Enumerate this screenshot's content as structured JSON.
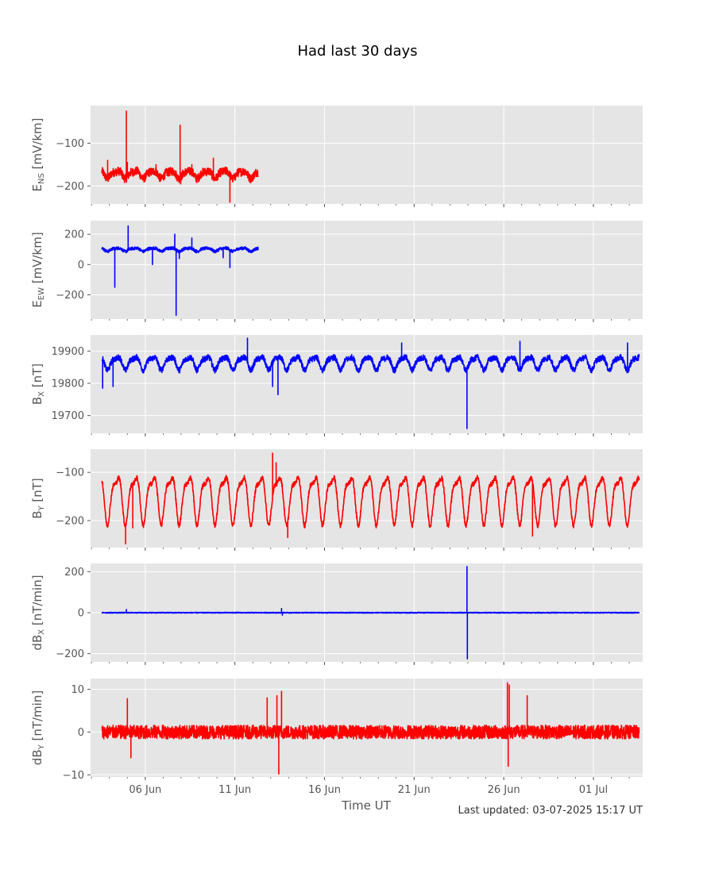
{
  "title": "Had last 30 days",
  "xlabel": "Time UT",
  "footer": "Last updated: 03-07-2025 15:17 UT",
  "chart_data": [
    {
      "type": "line",
      "ylabel_main": "E",
      "ylabel_sub": "NS",
      "ylabel_unit": " [mV/km]",
      "ylim": [
        -242,
        -12
      ],
      "yticks": [
        -100,
        -200
      ],
      "color": "#ff0000",
      "grid": true,
      "x_day_range": [
        3.58,
        12.3
      ],
      "base": -172,
      "slow_amp": 8,
      "noise": 10,
      "spikes": [
        [
          4.95,
          -25
        ],
        [
          5.0,
          -145
        ],
        [
          7.95,
          -58
        ],
        [
          7.98,
          -195
        ],
        [
          9.8,
          -135
        ],
        [
          10.72,
          -238
        ],
        [
          3.9,
          -140
        ],
        [
          6.6,
          -150
        ],
        [
          8.6,
          -150
        ]
      ]
    },
    {
      "type": "line",
      "ylabel_main": "E",
      "ylabel_sub": "EW",
      "ylabel_unit": " [mV/km]",
      "ylim": [
        -360,
        290
      ],
      "yticks": [
        200,
        0,
        -200
      ],
      "color": "#0000ff",
      "grid": true,
      "x_day_range": [
        3.58,
        12.3
      ],
      "base": 100,
      "slow_amp": 10,
      "noise": 10,
      "spikes": [
        [
          4.3,
          -150
        ],
        [
          5.05,
          255
        ],
        [
          6.4,
          0
        ],
        [
          7.65,
          200
        ],
        [
          7.72,
          -335
        ],
        [
          7.9,
          40
        ],
        [
          8.6,
          175
        ],
        [
          10.35,
          45
        ],
        [
          10.72,
          -20
        ]
      ]
    },
    {
      "type": "line",
      "ylabel_main": "B",
      "ylabel_sub": "X",
      "ylabel_unit": " [nT]",
      "ylim": [
        19645,
        19950
      ],
      "yticks": [
        19900,
        19800,
        19700
      ],
      "color": "#0000ff",
      "grid": true,
      "x_day_range": [
        3.58,
        33.55
      ],
      "base": 19865,
      "slow_amp": 18,
      "noise": 9,
      "spikes": [
        [
          3.62,
          19785
        ],
        [
          4.2,
          19790
        ],
        [
          13.4,
          19765
        ],
        [
          11.7,
          19940
        ],
        [
          20.3,
          19925
        ],
        [
          23.95,
          19660
        ],
        [
          26.9,
          19930
        ],
        [
          32.9,
          19925
        ],
        [
          13.1,
          19790
        ]
      ]
    },
    {
      "type": "line",
      "ylabel_main": "B",
      "ylabel_sub": "Y",
      "ylabel_unit": " [nT]",
      "ylim": [
        -256,
        -52
      ],
      "yticks": [
        -100,
        -200
      ],
      "color": "#ff0000",
      "grid": true,
      "x_day_range": [
        3.58,
        33.55
      ],
      "base": -150,
      "slow_amp": 45,
      "noise": 5,
      "spikes": [
        [
          4.9,
          -248
        ],
        [
          13.1,
          -60
        ],
        [
          13.3,
          -80
        ],
        [
          13.95,
          -235
        ],
        [
          27.6,
          -232
        ],
        [
          5.3,
          -215
        ]
      ]
    },
    {
      "type": "line",
      "ylabel_main": "dB",
      "ylabel_sub": "X",
      "ylabel_unit": " [nT/min]",
      "ylim": [
        -240,
        240
      ],
      "yticks": [
        200,
        0,
        -200
      ],
      "color": "#0000ff",
      "grid": true,
      "x_day_range": [
        3.58,
        33.55
      ],
      "base": 0,
      "slow_amp": 0,
      "noise": 2,
      "spikes": [
        [
          23.95,
          225
        ],
        [
          23.97,
          -225
        ],
        [
          4.95,
          15
        ],
        [
          13.6,
          20
        ],
        [
          13.65,
          -12
        ]
      ]
    },
    {
      "type": "line",
      "ylabel_main": "dB",
      "ylabel_sub": "Y",
      "ylabel_unit": " [nT/min]",
      "ylim": [
        -10.5,
        12.5
      ],
      "yticks": [
        10,
        0,
        -10
      ],
      "color": "#ff0000",
      "grid": true,
      "x_day_range": [
        3.58,
        33.55
      ],
      "base": 0,
      "slow_amp": 0,
      "noise": 1.6,
      "spikes": [
        [
          5.0,
          7.8
        ],
        [
          13.35,
          8.5
        ],
        [
          13.6,
          9.5
        ],
        [
          13.45,
          -9.8
        ],
        [
          26.2,
          11.5
        ],
        [
          26.3,
          11
        ],
        [
          26.25,
          -8
        ],
        [
          27.3,
          8.5
        ],
        [
          5.2,
          -6
        ],
        [
          12.8,
          8
        ]
      ]
    }
  ],
  "x_axis": {
    "day_range": [
      2.95,
      33.75
    ],
    "tick_labels": [
      "06 Jun",
      "11 Jun",
      "16 Jun",
      "21 Jun",
      "26 Jun",
      "01 Jul"
    ],
    "tick_days": [
      6,
      11,
      16,
      21,
      26,
      31
    ]
  }
}
